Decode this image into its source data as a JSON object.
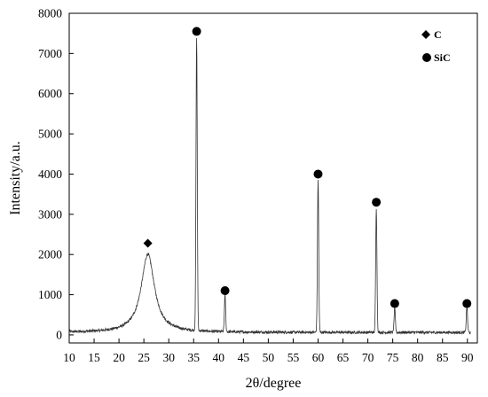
{
  "chart_data": {
    "type": "line",
    "title": "",
    "xlabel": "2θ/degree",
    "ylabel": "Intensity/a.u.",
    "xlim": [
      10,
      92
    ],
    "ylim": [
      -200,
      8000
    ],
    "xticks": [
      10,
      15,
      20,
      25,
      30,
      35,
      40,
      45,
      50,
      55,
      60,
      65,
      70,
      75,
      80,
      85,
      90
    ],
    "yticks": [
      0,
      1000,
      2000,
      3000,
      4000,
      5000,
      6000,
      7000,
      8000
    ],
    "grid": false,
    "legend_position": "top-right",
    "legend": [
      {
        "label": "C",
        "marker": "diamond"
      },
      {
        "label": "SiC",
        "marker": "circle"
      }
    ],
    "baseline": 60,
    "peaks": [
      {
        "phase": "C",
        "x": 25.8,
        "y": 1950,
        "width": 1.6
      },
      {
        "phase": "SiC",
        "x": 35.6,
        "y": 7300,
        "width": 0.18
      },
      {
        "phase": "SiC",
        "x": 41.3,
        "y": 900,
        "width": 0.18
      },
      {
        "phase": "SiC",
        "x": 60.0,
        "y": 3800,
        "width": 0.18
      },
      {
        "phase": "SiC",
        "x": 71.7,
        "y": 3100,
        "width": 0.18
      },
      {
        "phase": "SiC",
        "x": 75.4,
        "y": 600,
        "width": 0.18
      },
      {
        "phase": "SiC",
        "x": 89.9,
        "y": 650,
        "width": 0.18
      }
    ],
    "markers": [
      {
        "phase": "C",
        "shape": "diamond",
        "x": 25.8,
        "y": 2280
      },
      {
        "phase": "SiC",
        "shape": "circle",
        "x": 35.6,
        "y": 7550
      },
      {
        "phase": "SiC",
        "shape": "circle",
        "x": 41.3,
        "y": 1100
      },
      {
        "phase": "SiC",
        "shape": "circle",
        "x": 60.0,
        "y": 4000
      },
      {
        "phase": "SiC",
        "shape": "circle",
        "x": 71.7,
        "y": 3300
      },
      {
        "phase": "SiC",
        "shape": "circle",
        "x": 75.4,
        "y": 780
      },
      {
        "phase": "SiC",
        "shape": "circle",
        "x": 89.9,
        "y": 780
      }
    ],
    "colors": {
      "line": "#333333",
      "marker": "#000000",
      "axis": "#000000"
    }
  }
}
